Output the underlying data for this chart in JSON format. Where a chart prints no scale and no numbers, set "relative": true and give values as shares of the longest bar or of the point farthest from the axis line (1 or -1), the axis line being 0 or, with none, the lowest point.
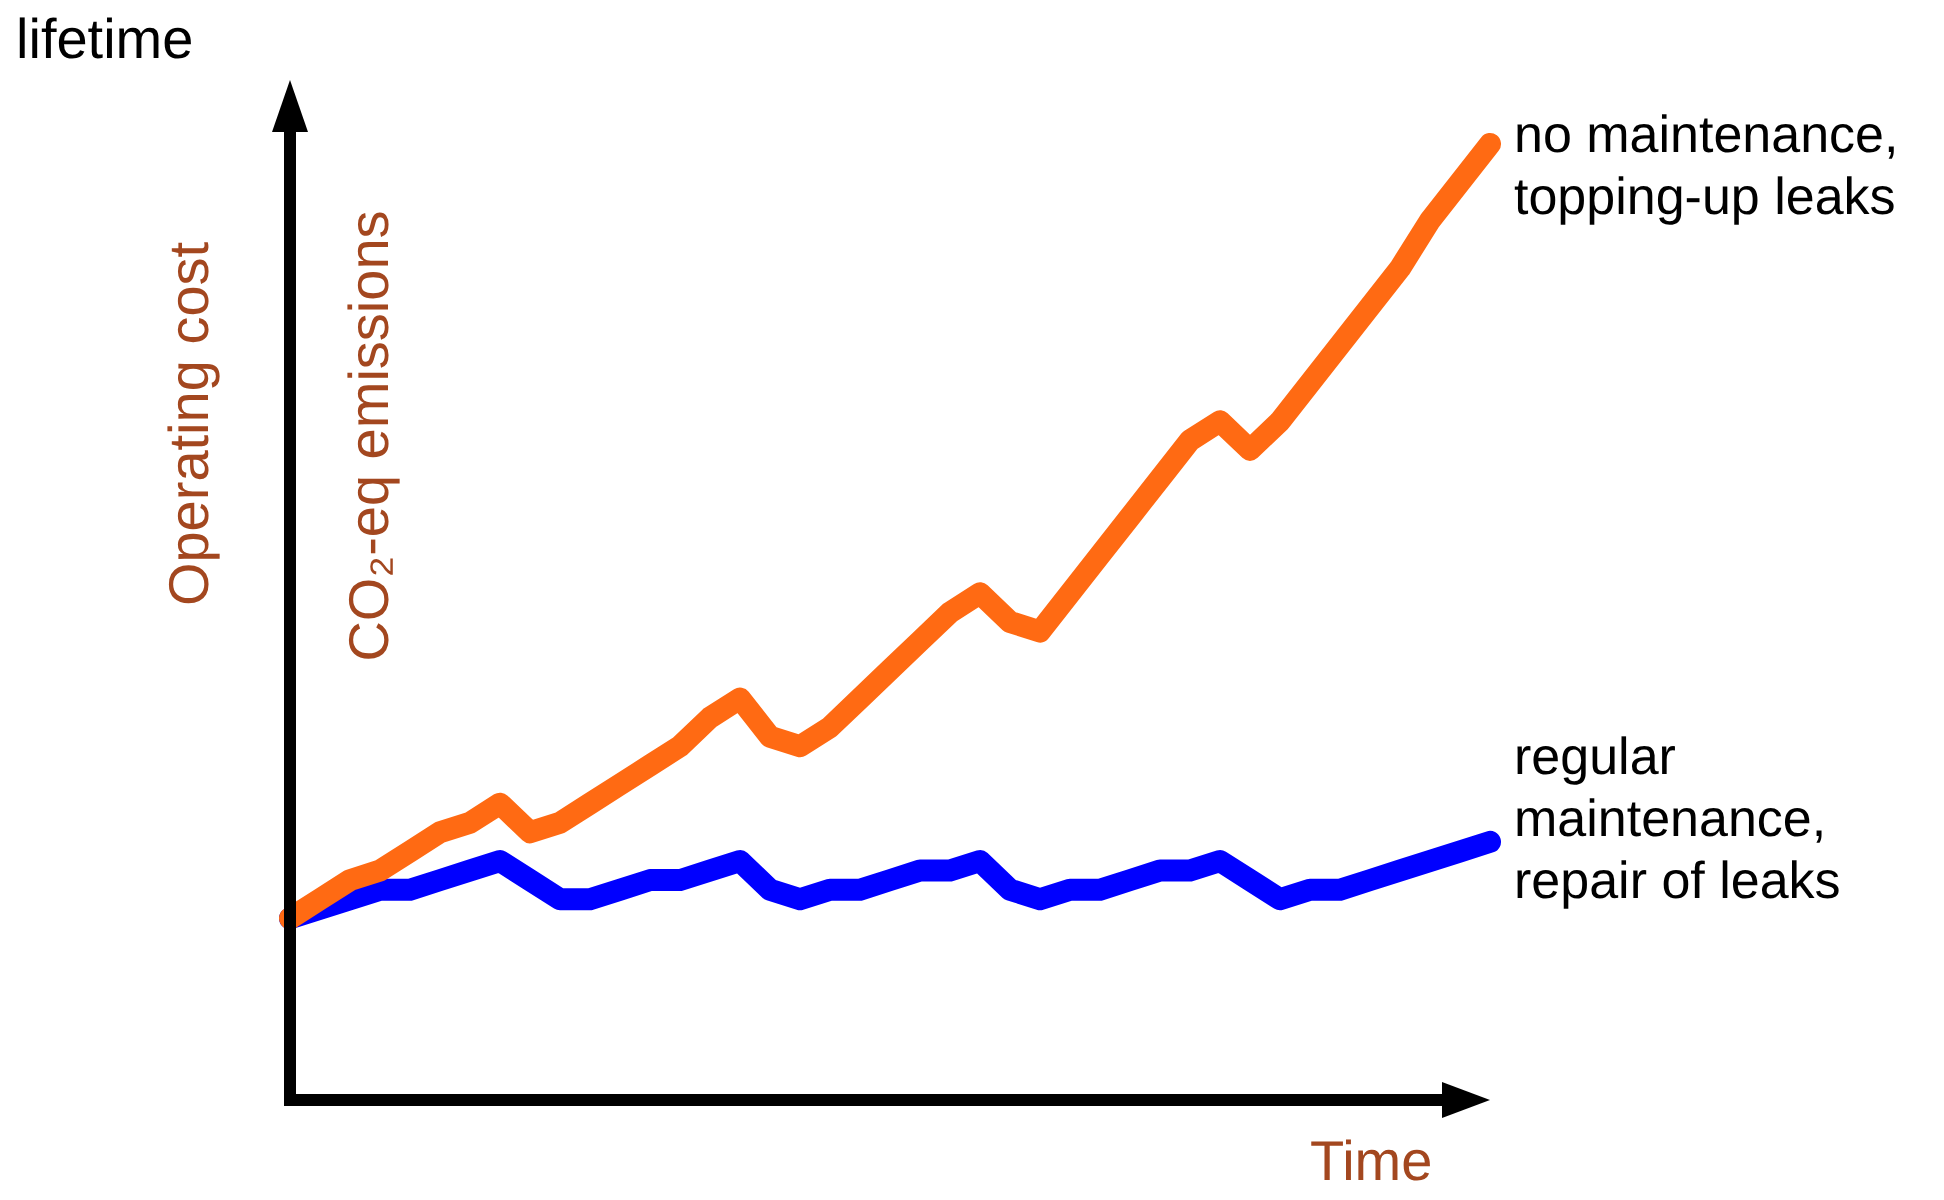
{
  "chart_data": {
    "type": "line",
    "relative": true,
    "xlabel": "Time",
    "ylabel": "Operating cost",
    "annotations": [
      "CO₂-eq emissions",
      "lifetime"
    ],
    "grid": false,
    "legend": false,
    "marker": "none",
    "line_style": "solid",
    "categories": [
      null,
      null,
      null,
      null,
      null,
      null,
      null,
      null,
      null,
      null,
      null,
      null,
      null,
      null,
      null,
      null,
      null,
      null,
      null,
      null,
      null,
      null,
      null,
      null,
      null,
      null,
      null,
      null,
      null,
      null,
      null,
      null,
      null,
      null,
      null,
      null,
      null,
      null,
      null,
      null,
      null
    ],
    "series": [
      {
        "name": "no maintenance, topping-up leaks",
        "color": "#ff6a13",
        "values": [
          0.19,
          0.21,
          0.23,
          0.24,
          0.26,
          0.28,
          0.29,
          0.31,
          0.28,
          0.29,
          0.31,
          0.33,
          0.35,
          0.37,
          0.4,
          0.42,
          0.38,
          0.37,
          0.39,
          0.42,
          0.45,
          0.48,
          0.51,
          0.53,
          0.5,
          0.49,
          0.53,
          0.57,
          0.61,
          0.65,
          0.69,
          0.71,
          0.68,
          0.71,
          0.75,
          0.79,
          0.83,
          0.87,
          0.92,
          0.96,
          1
        ]
      },
      {
        "name": "regular maintenance, repair of leaks",
        "color": "#0000ff",
        "values": [
          0.19,
          0.2,
          0.21,
          0.22,
          0.22,
          0.23,
          0.24,
          0.25,
          0.23,
          0.21,
          0.21,
          0.22,
          0.23,
          0.23,
          0.24,
          0.25,
          0.22,
          0.21,
          0.22,
          0.22,
          0.23,
          0.24,
          0.24,
          0.25,
          0.22,
          0.21,
          0.22,
          0.22,
          0.23,
          0.24,
          0.24,
          0.25,
          0.23,
          0.21,
          0.22,
          0.22,
          0.23,
          0.24,
          0.25,
          0.26,
          0.27
        ]
      }
    ]
  }
}
